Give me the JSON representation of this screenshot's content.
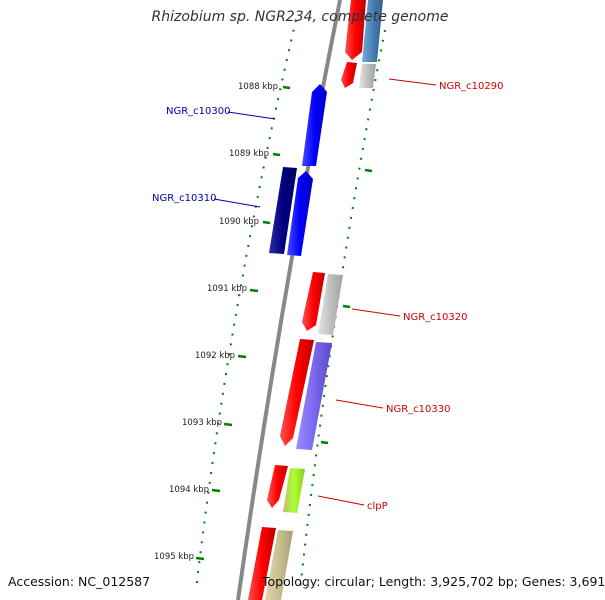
{
  "title": "Rhizobium sp. NGR234, complete genome",
  "footer": {
    "accession_label": "Accession:",
    "accession": "NC_012587",
    "topology_text": "Topology: circular; Length: 3,925,702 bp; Genes: 3,691"
  },
  "scale_ticks": [
    "1088 kbp",
    "1089 kbp",
    "1090 kbp",
    "1091 kbp",
    "1092 kbp",
    "1093 kbp",
    "1094 kbp",
    "1095 kbp"
  ],
  "gene_labels": [
    {
      "id": "NGR_c10290",
      "text": "NGR_c10290",
      "color": "#cc0000"
    },
    {
      "id": "NGR_c10300",
      "text": "NGR_c10300",
      "color": "#0000aa"
    },
    {
      "id": "NGR_c10310",
      "text": "NGR_c10310",
      "color": "#0000aa"
    },
    {
      "id": "NGR_c10320",
      "text": "NGR_c10320",
      "color": "#cc0000"
    },
    {
      "id": "NGR_c10330",
      "text": "NGR_c10330",
      "color": "#cc0000"
    },
    {
      "id": "clpP",
      "text": "clpP",
      "color": "#cc0000"
    }
  ],
  "colors": {
    "forward_gene": "#0000ff",
    "forward_gene_dark": "#000080",
    "reverse_gene": "#ff0000",
    "cog_gray": "#c0c0c0",
    "cog_purple": "#7b68ee",
    "cog_lime": "#adff2f",
    "cog_khaki": "#c8c090",
    "cog_steelblue": "#4682b4",
    "backbone": "#888888",
    "scale_dots": "#008000"
  }
}
